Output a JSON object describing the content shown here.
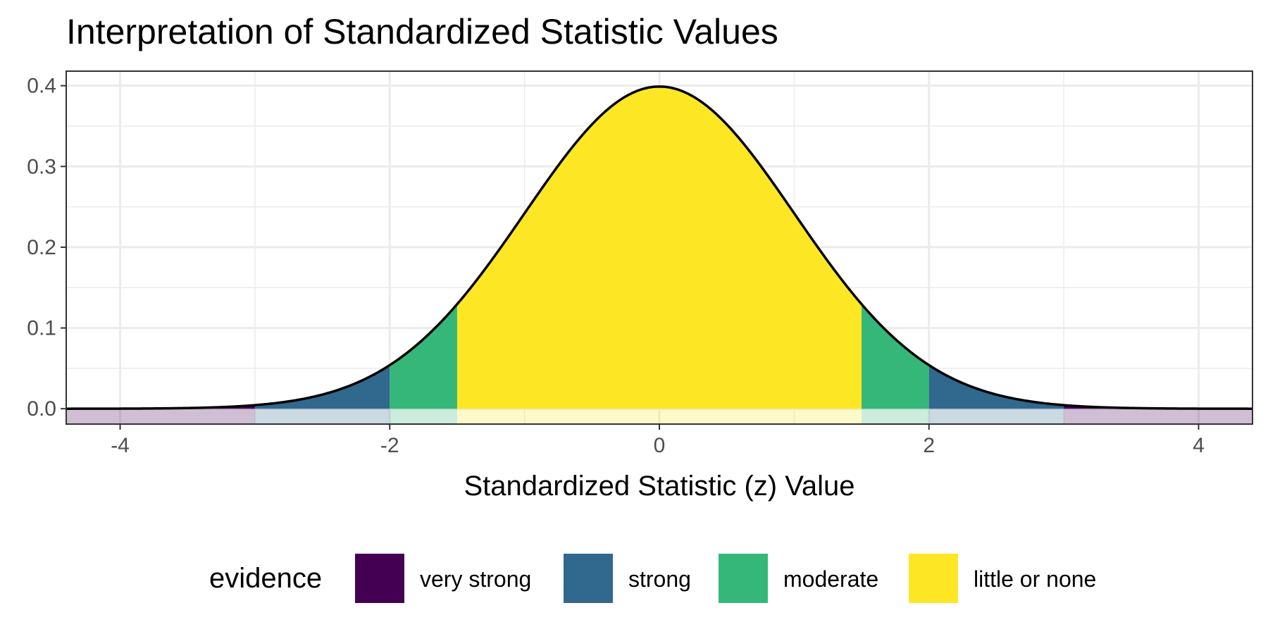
{
  "chart_data": {
    "type": "area",
    "title": "Interpretation of Standardized Statistic Values",
    "xlabel": "Standardized Statistic (z) Value",
    "ylabel": "",
    "xlim": [
      -4.4,
      4.4
    ],
    "ylim": [
      -0.019,
      0.418
    ],
    "x_ticks": [
      -4,
      -2,
      0,
      2,
      4
    ],
    "x_tick_labels": [
      "-4",
      "-2",
      "0",
      "2",
      "4"
    ],
    "y_ticks": [
      0.0,
      0.1,
      0.2,
      0.3,
      0.4
    ],
    "y_tick_labels": [
      "0.0",
      "0.1",
      "0.2",
      "0.3",
      "0.4"
    ],
    "grid": true,
    "curve": "standard normal density",
    "regions": [
      {
        "evidence": "very strong",
        "from": -4.4,
        "to": -3,
        "color": "#440154"
      },
      {
        "evidence": "strong",
        "from": -3,
        "to": -2,
        "color": "#31688E"
      },
      {
        "evidence": "moderate",
        "from": -2,
        "to": -1.5,
        "color": "#35B779"
      },
      {
        "evidence": "little or none",
        "from": -1.5,
        "to": 1.5,
        "color": "#FDE725"
      },
      {
        "evidence": "moderate",
        "from": 1.5,
        "to": 2,
        "color": "#35B779"
      },
      {
        "evidence": "strong",
        "from": 2,
        "to": 3,
        "color": "#31688E"
      },
      {
        "evidence": "very strong",
        "from": 3,
        "to": 4.4,
        "color": "#440154"
      }
    ],
    "legend": {
      "title": "evidence",
      "position": "bottom",
      "entries": [
        {
          "label": "very strong",
          "color": "#440154"
        },
        {
          "label": "strong",
          "color": "#31688E"
        },
        {
          "label": "moderate",
          "color": "#35B779"
        },
        {
          "label": "little or none",
          "color": "#FDE725"
        }
      ]
    }
  }
}
